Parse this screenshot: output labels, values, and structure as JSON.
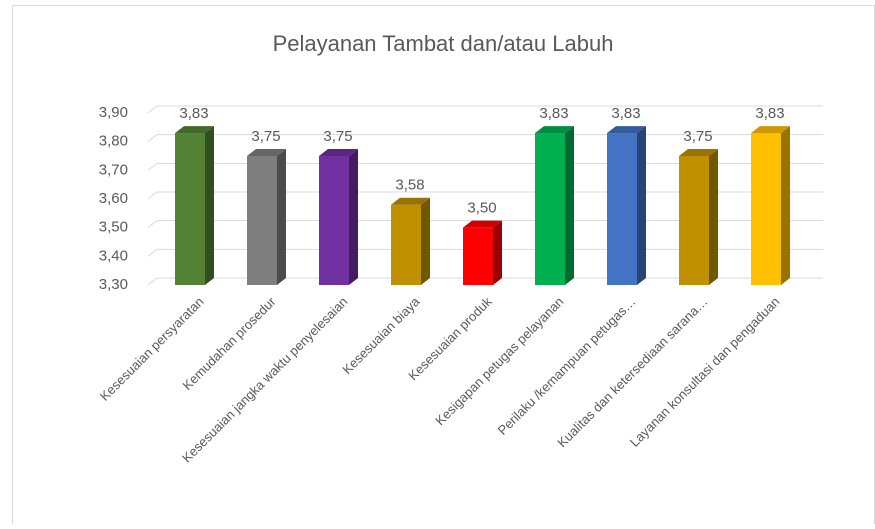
{
  "chart_data": {
    "type": "bar3d",
    "title": "Pelayanan Tambat dan/atau Labuh",
    "categories": [
      "Kesesuaian persyaratan",
      "Kemudahan prosedur",
      "Kesesuaian jangka waktu penyelesaian",
      "Kesesuaian biaya",
      "Kesesuaian produk",
      "Kesigapan petugas pelayanan",
      "Perilaku /kemampuan petugas…",
      "Kualitas dan ketersediaan sarana…",
      "Layanan konsultasi dan pengaduan"
    ],
    "values": [
      3.83,
      3.75,
      3.75,
      3.58,
      3.5,
      3.83,
      3.83,
      3.75,
      3.83
    ],
    "value_labels": [
      "3,83",
      "3,75",
      "3,75",
      "3,58",
      "3,50",
      "3,83",
      "3,83",
      "3,75",
      "3,83"
    ],
    "colors": [
      "#548235",
      "#7f7f7f",
      "#7030a0",
      "#bf9000",
      "#ff0000",
      "#00b050",
      "#4472c4",
      "#bf9000",
      "#ffc000"
    ],
    "ylim": [
      3.3,
      3.9
    ],
    "yticks": [
      {
        "value": 3.3,
        "label": "3,30"
      },
      {
        "value": 3.4,
        "label": "3,40"
      },
      {
        "value": 3.5,
        "label": "3,50"
      },
      {
        "value": 3.6,
        "label": "3,60"
      },
      {
        "value": 3.7,
        "label": "3,70"
      },
      {
        "value": 3.8,
        "label": "3,80"
      },
      {
        "value": 3.9,
        "label": "3,90"
      }
    ],
    "grid": true
  }
}
